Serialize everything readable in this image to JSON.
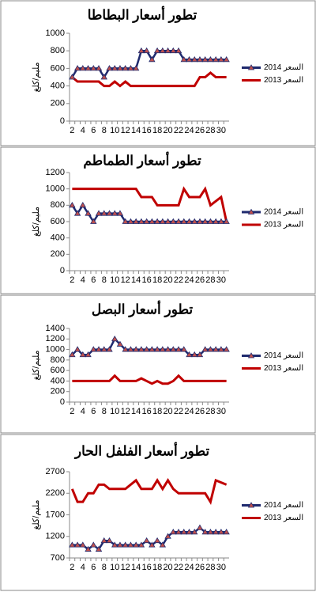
{
  "chart_data": [
    {
      "type": "line",
      "title": "تطور أسعار البطاطا",
      "y_label": "مليم/كلغ",
      "categories": [
        "2",
        null,
        "4",
        null,
        "6",
        null,
        "8",
        null,
        "10",
        null,
        "12",
        null,
        "14",
        null,
        "16",
        null,
        "18",
        null,
        "20",
        null,
        "22",
        null,
        "24",
        null,
        "26",
        null,
        "28",
        null,
        "30",
        null
      ],
      "series": [
        {
          "name": "السعر 2014",
          "color": "#1f2a6e",
          "marker_color": "#c0504d",
          "values": [
            500,
            600,
            600,
            600,
            600,
            600,
            500,
            600,
            600,
            600,
            600,
            600,
            600,
            800,
            800,
            700,
            800,
            800,
            800,
            800,
            800,
            700,
            700,
            700,
            700,
            700,
            700,
            700,
            700,
            700
          ]
        },
        {
          "name": "السعر 2013",
          "color": "#c00000",
          "values": [
            500,
            450,
            450,
            450,
            450,
            450,
            400,
            400,
            450,
            400,
            450,
            400,
            400,
            400,
            400,
            400,
            400,
            400,
            400,
            400,
            400,
            400,
            400,
            400,
            500,
            500,
            550,
            500,
            500,
            500
          ]
        }
      ],
      "ylim": [
        0,
        1000
      ],
      "yticks": [
        0,
        200,
        400,
        600,
        800,
        1000
      ]
    },
    {
      "type": "line",
      "title": "تطور أسعار الطماطم",
      "y_label": "مليم/كلغ",
      "categories": [
        "2",
        null,
        "4",
        null,
        "6",
        null,
        "8",
        null,
        "10",
        null,
        "12",
        null,
        "14",
        null,
        "16",
        null,
        "18",
        null,
        "20",
        null,
        "22",
        null,
        "24",
        null,
        "26",
        null,
        "28",
        null,
        "30",
        null
      ],
      "series": [
        {
          "name": "السعر 2014",
          "color": "#1f2a6e",
          "marker_color": "#c0504d",
          "values": [
            800,
            700,
            800,
            700,
            600,
            700,
            700,
            700,
            700,
            700,
            600,
            600,
            600,
            600,
            600,
            600,
            600,
            600,
            600,
            600,
            600,
            600,
            600,
            600,
            600,
            600,
            600,
            600,
            600,
            600
          ]
        },
        {
          "name": "السعر 2013",
          "color": "#c00000",
          "values": [
            1000,
            1000,
            1000,
            1000,
            1000,
            1000,
            1000,
            1000,
            1000,
            1000,
            1000,
            1000,
            1000,
            900,
            900,
            900,
            800,
            800,
            800,
            800,
            800,
            1000,
            900,
            900,
            900,
            1000,
            800,
            850,
            900,
            600
          ]
        }
      ],
      "ylim": [
        0,
        1200
      ],
      "yticks": [
        0,
        200,
        400,
        600,
        800,
        1000,
        1200
      ]
    },
    {
      "type": "line",
      "title": "تطور أسعار البصل",
      "y_label": "مليم/كلغ",
      "categories": [
        "2",
        null,
        "4",
        null,
        "6",
        null,
        "8",
        null,
        "10",
        null,
        "12",
        null,
        "14",
        null,
        "16",
        null,
        "18",
        null,
        "20",
        null,
        "22",
        null,
        "24",
        null,
        "26",
        null,
        "28",
        null,
        "30",
        null
      ],
      "series": [
        {
          "name": "السعر 2014",
          "color": "#1f2a6e",
          "marker_color": "#c0504d",
          "values": [
            900,
            1000,
            900,
            900,
            1000,
            1000,
            1000,
            1000,
            1200,
            1100,
            1000,
            1000,
            1000,
            1000,
            1000,
            1000,
            1000,
            1000,
            1000,
            1000,
            1000,
            1000,
            900,
            900,
            900,
            1000,
            1000,
            1000,
            1000,
            1000
          ]
        },
        {
          "name": "السعر 2013",
          "color": "#c00000",
          "values": [
            400,
            400,
            400,
            400,
            400,
            400,
            400,
            400,
            500,
            400,
            400,
            400,
            400,
            450,
            400,
            350,
            400,
            350,
            350,
            400,
            500,
            400,
            400,
            400,
            400,
            400,
            400,
            400,
            400,
            400
          ]
        }
      ],
      "ylim": [
        0,
        1400
      ],
      "yticks": [
        0,
        200,
        400,
        600,
        800,
        1000,
        1200,
        1400
      ]
    },
    {
      "type": "line",
      "title": "تطور أسعار الفلفل الحار",
      "y_label": "مليم/كلغ",
      "categories": [
        "2",
        null,
        "4",
        null,
        "6",
        null,
        "8",
        null,
        "10",
        null,
        "12",
        null,
        "14",
        null,
        "16",
        null,
        "18",
        null,
        "20",
        null,
        "22",
        null,
        "24",
        null,
        "26",
        null,
        "28",
        null,
        "30",
        null
      ],
      "series": [
        {
          "name": "السعر 2014",
          "color": "#1f2a6e",
          "marker_color": "#c0504d",
          "values": [
            1000,
            1000,
            1000,
            900,
            1000,
            900,
            1100,
            1100,
            1000,
            1000,
            1000,
            1000,
            1000,
            1000,
            1100,
            1000,
            1100,
            1000,
            1200,
            1300,
            1300,
            1300,
            1300,
            1300,
            1400,
            1300,
            1300,
            1300,
            1300,
            1300
          ]
        },
        {
          "name": "السعر 2013",
          "color": "#c00000",
          "values": [
            2300,
            2000,
            2000,
            2200,
            2200,
            2400,
            2400,
            2300,
            2300,
            2300,
            2300,
            2400,
            2500,
            2300,
            2300,
            2300,
            2500,
            2300,
            2500,
            2300,
            2200,
            2200,
            2200,
            2200,
            2200,
            2200,
            2000,
            2500,
            2450,
            2400
          ]
        }
      ],
      "ylim": [
        700,
        2700
      ],
      "yticks": [
        700,
        1200,
        1700,
        2200,
        2700
      ]
    }
  ]
}
